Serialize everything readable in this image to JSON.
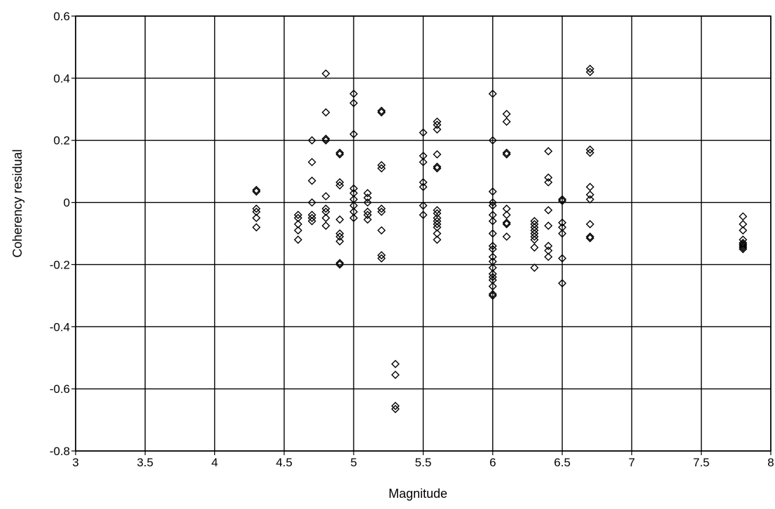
{
  "chart_data": {
    "type": "scatter",
    "title": "",
    "xlabel": "Magnitude",
    "ylabel": "Coherency residual",
    "xlim": [
      3,
      8
    ],
    "ylim": [
      -0.8,
      0.6
    ],
    "xticks": [
      3,
      3.5,
      4,
      4.5,
      5,
      5.5,
      6,
      6.5,
      7,
      7.5,
      8
    ],
    "xtick_labels": [
      "3",
      "3.5",
      "4",
      "4.5",
      "5",
      "5.5",
      "6",
      "6.5",
      "7",
      "7.5",
      "8"
    ],
    "yticks": [
      -0.8,
      -0.6,
      -0.4,
      -0.2,
      0,
      0.2,
      0.4,
      0.6
    ],
    "ytick_labels": [
      "-0.8",
      "-0.6",
      "-0.4",
      "-0.2",
      "0",
      "0.2",
      "0.4",
      "0.6"
    ],
    "grid": true,
    "marker": "diamond",
    "marker_color": "#000000",
    "points": [
      [
        4.3,
        0.04
      ],
      [
        4.3,
        0.035
      ],
      [
        4.3,
        -0.02
      ],
      [
        4.3,
        -0.03
      ],
      [
        4.3,
        -0.05
      ],
      [
        4.3,
        -0.08
      ],
      [
        4.6,
        -0.04
      ],
      [
        4.6,
        -0.05
      ],
      [
        4.6,
        -0.07
      ],
      [
        4.6,
        -0.09
      ],
      [
        4.6,
        -0.12
      ],
      [
        4.7,
        0.2
      ],
      [
        4.7,
        0.13
      ],
      [
        4.7,
        0.07
      ],
      [
        4.7,
        0.0
      ],
      [
        4.7,
        -0.04
      ],
      [
        4.7,
        -0.05
      ],
      [
        4.7,
        -0.06
      ],
      [
        4.8,
        0.415
      ],
      [
        4.8,
        0.29
      ],
      [
        4.8,
        0.205
      ],
      [
        4.8,
        0.2
      ],
      [
        4.8,
        0.02
      ],
      [
        4.8,
        -0.02
      ],
      [
        4.8,
        -0.03
      ],
      [
        4.8,
        -0.05
      ],
      [
        4.8,
        -0.075
      ],
      [
        4.9,
        0.16
      ],
      [
        4.9,
        0.155
      ],
      [
        4.9,
        0.065
      ],
      [
        4.9,
        0.055
      ],
      [
        4.9,
        -0.055
      ],
      [
        4.9,
        -0.1
      ],
      [
        4.9,
        -0.11
      ],
      [
        4.9,
        -0.125
      ],
      [
        4.9,
        -0.195
      ],
      [
        4.9,
        -0.2
      ],
      [
        5.0,
        0.35
      ],
      [
        5.0,
        0.32
      ],
      [
        5.0,
        0.22
      ],
      [
        5.0,
        0.045
      ],
      [
        5.0,
        0.03
      ],
      [
        5.0,
        0.01
      ],
      [
        5.0,
        -0.01
      ],
      [
        5.0,
        -0.03
      ],
      [
        5.0,
        -0.05
      ],
      [
        5.1,
        0.03
      ],
      [
        5.1,
        0.015
      ],
      [
        5.1,
        0.0
      ],
      [
        5.1,
        -0.03
      ],
      [
        5.1,
        -0.04
      ],
      [
        5.1,
        -0.055
      ],
      [
        5.2,
        0.295
      ],
      [
        5.2,
        0.29
      ],
      [
        5.2,
        0.12
      ],
      [
        5.2,
        0.11
      ],
      [
        5.2,
        -0.02
      ],
      [
        5.2,
        -0.03
      ],
      [
        5.2,
        -0.09
      ],
      [
        5.2,
        -0.17
      ],
      [
        5.2,
        -0.18
      ],
      [
        5.3,
        -0.52
      ],
      [
        5.3,
        -0.555
      ],
      [
        5.3,
        -0.655
      ],
      [
        5.3,
        -0.665
      ],
      [
        5.5,
        0.225
      ],
      [
        5.5,
        0.15
      ],
      [
        5.5,
        0.13
      ],
      [
        5.5,
        0.065
      ],
      [
        5.5,
        0.05
      ],
      [
        5.5,
        -0.01
      ],
      [
        5.5,
        -0.04
      ],
      [
        5.6,
        0.26
      ],
      [
        5.6,
        0.25
      ],
      [
        5.6,
        0.235
      ],
      [
        5.6,
        0.155
      ],
      [
        5.6,
        0.115
      ],
      [
        5.6,
        0.11
      ],
      [
        5.6,
        -0.025
      ],
      [
        5.6,
        -0.035
      ],
      [
        5.6,
        -0.05
      ],
      [
        5.6,
        -0.06
      ],
      [
        5.6,
        -0.07
      ],
      [
        5.6,
        -0.08
      ],
      [
        5.6,
        -0.1
      ],
      [
        5.6,
        -0.12
      ],
      [
        6.0,
        0.35
      ],
      [
        6.0,
        0.2
      ],
      [
        6.0,
        0.035
      ],
      [
        6.0,
        0.0
      ],
      [
        6.0,
        -0.01
      ],
      [
        6.0,
        -0.04
      ],
      [
        6.0,
        -0.06
      ],
      [
        6.0,
        -0.1
      ],
      [
        6.0,
        -0.14
      ],
      [
        6.0,
        -0.15
      ],
      [
        6.0,
        -0.175
      ],
      [
        6.0,
        -0.19
      ],
      [
        6.0,
        -0.21
      ],
      [
        6.0,
        -0.23
      ],
      [
        6.0,
        -0.24
      ],
      [
        6.0,
        -0.25
      ],
      [
        6.0,
        -0.27
      ],
      [
        6.0,
        -0.295
      ],
      [
        6.0,
        -0.3
      ],
      [
        6.1,
        0.285
      ],
      [
        6.1,
        0.26
      ],
      [
        6.1,
        0.16
      ],
      [
        6.1,
        0.155
      ],
      [
        6.1,
        -0.02
      ],
      [
        6.1,
        -0.04
      ],
      [
        6.1,
        -0.065
      ],
      [
        6.1,
        -0.07
      ],
      [
        6.1,
        -0.11
      ],
      [
        6.3,
        -0.06
      ],
      [
        6.3,
        -0.07
      ],
      [
        6.3,
        -0.08
      ],
      [
        6.3,
        -0.09
      ],
      [
        6.3,
        -0.1
      ],
      [
        6.3,
        -0.11
      ],
      [
        6.3,
        -0.12
      ],
      [
        6.3,
        -0.145
      ],
      [
        6.3,
        -0.21
      ],
      [
        6.4,
        0.165
      ],
      [
        6.4,
        0.08
      ],
      [
        6.4,
        0.065
      ],
      [
        6.4,
        -0.025
      ],
      [
        6.4,
        -0.075
      ],
      [
        6.4,
        -0.14
      ],
      [
        6.4,
        -0.155
      ],
      [
        6.4,
        -0.175
      ],
      [
        6.5,
        0.01
      ],
      [
        6.5,
        0.005
      ],
      [
        6.5,
        -0.065
      ],
      [
        6.5,
        -0.08
      ],
      [
        6.5,
        -0.1
      ],
      [
        6.5,
        -0.18
      ],
      [
        6.5,
        -0.26
      ],
      [
        6.7,
        0.43
      ],
      [
        6.7,
        0.42
      ],
      [
        6.7,
        0.17
      ],
      [
        6.7,
        0.16
      ],
      [
        6.7,
        0.05
      ],
      [
        6.7,
        0.025
      ],
      [
        6.7,
        0.01
      ],
      [
        6.7,
        -0.07
      ],
      [
        6.7,
        -0.11
      ],
      [
        6.7,
        -0.115
      ],
      [
        7.8,
        -0.045
      ],
      [
        7.8,
        -0.07
      ],
      [
        7.8,
        -0.09
      ],
      [
        7.8,
        -0.12
      ],
      [
        7.8,
        -0.13
      ],
      [
        7.8,
        -0.135
      ],
      [
        7.8,
        -0.14
      ],
      [
        7.8,
        -0.145
      ],
      [
        7.8,
        -0.15
      ]
    ]
  }
}
